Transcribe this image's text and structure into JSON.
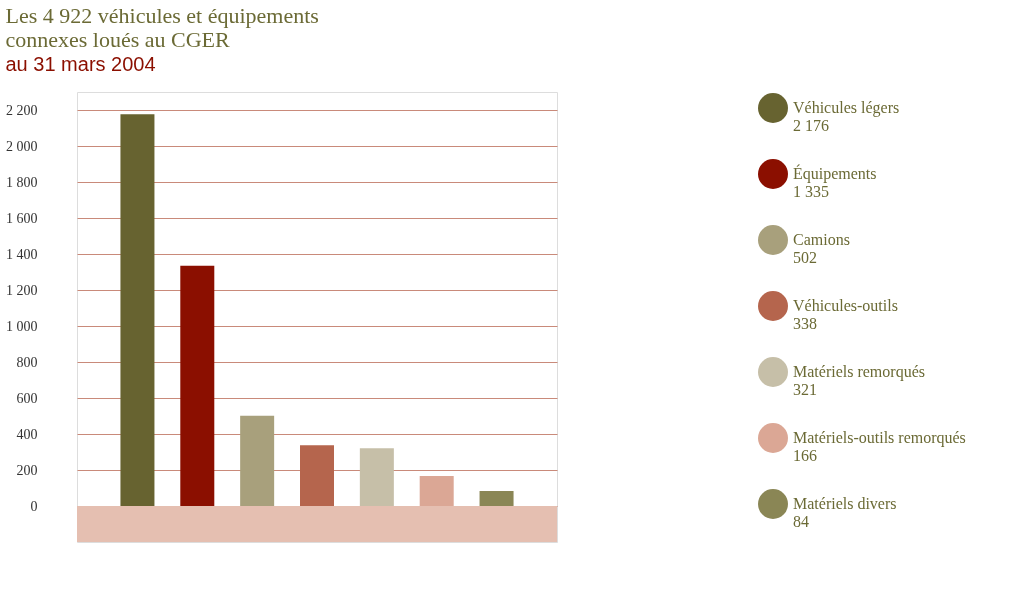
{
  "chart_data": {
    "type": "bar",
    "title": "Les 4 922 véhicules et équipements connexes loués au CGER",
    "subtitle": "au 31 mars 2004",
    "categories": [
      null,
      null,
      null,
      null,
      null,
      null,
      null
    ],
    "series": [
      {
        "name": "Véhicules légers",
        "color": "#676330",
        "values": [
          2176,
          null,
          null,
          null,
          null,
          null,
          null
        ]
      },
      {
        "name": "Équipements",
        "color": "#8b0f00",
        "values": [
          null,
          1335,
          null,
          null,
          null,
          null,
          null
        ]
      },
      {
        "name": "Camions",
        "color": "#a8a07c",
        "values": [
          null,
          null,
          502,
          null,
          null,
          null,
          null
        ]
      },
      {
        "name": "Véhicules-outils",
        "color": "#b5654d",
        "values": [
          null,
          null,
          null,
          338,
          null,
          null,
          null
        ]
      },
      {
        "name": "Matériels remorqués",
        "color": "#c6bfa8",
        "values": [
          null,
          null,
          null,
          null,
          321,
          null,
          null
        ]
      },
      {
        "name": "Matériels-outils remorqués",
        "color": "#dba795",
        "values": [
          null,
          null,
          null,
          null,
          null,
          166,
          null
        ]
      },
      {
        "name": "Matériels divers",
        "color": "#8a8655",
        "values": [
          null,
          null,
          null,
          null,
          null,
          null,
          84
        ]
      }
    ],
    "annotations": [
      "2 176",
      "1 335",
      "502",
      "338",
      "321",
      "166",
      "84"
    ],
    "ylim": [
      -200,
      2300
    ],
    "yticks": [
      0,
      200,
      400,
      600,
      800,
      {
        "value": 1000,
        "label": "1 000"
      },
      {
        "value": 1200,
        "label": "1 200"
      },
      {
        "value": 1400,
        "label": "1 400"
      },
      {
        "value": 1600,
        "label": "1 600"
      },
      {
        "value": 1800,
        "label": "1 800"
      },
      {
        "value": 2000,
        "label": "2 000"
      },
      {
        "value": 2200,
        "label": "2 200"
      }
    ],
    "bands": [
      {
        "axis": "y",
        "from": -200,
        "to": 0,
        "color": "#e5bfb1"
      }
    ],
    "grid": "y",
    "legend": "right",
    "tick_labels": "y"
  }
}
